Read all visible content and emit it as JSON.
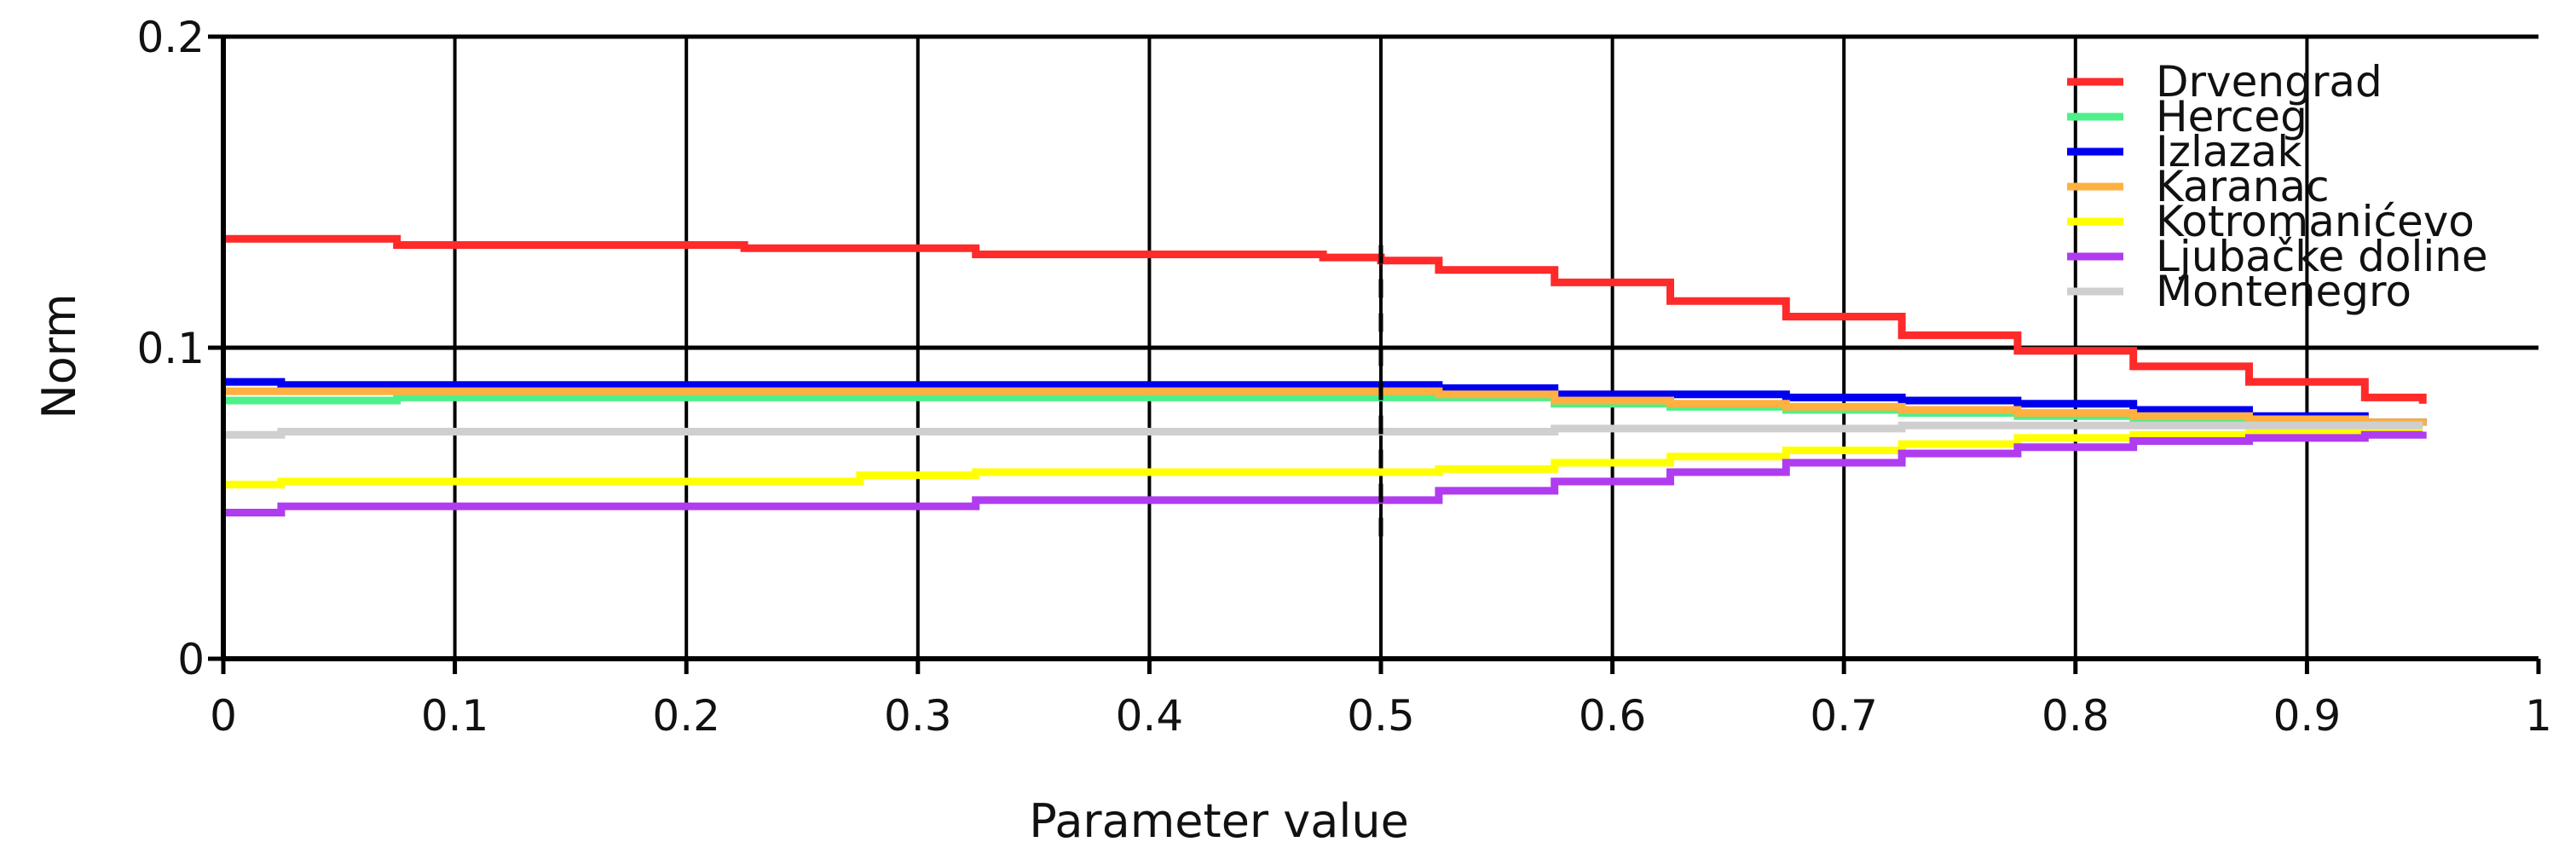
{
  "chart_data": {
    "type": "line",
    "xlabel": "Parameter value",
    "ylabel": "Norm",
    "xlim": [
      0,
      1
    ],
    "ylim": [
      0,
      0.2
    ],
    "x_ticks": [
      0,
      0.1,
      0.2,
      0.3,
      0.4,
      0.5,
      0.6,
      0.7,
      0.8,
      0.9,
      1
    ],
    "x_tick_labels": [
      "0",
      "0.1",
      "0.2",
      "0.3",
      "0.4",
      "0.5",
      "0.6",
      "0.7",
      "0.8",
      "0.9",
      "1"
    ],
    "y_ticks": [
      0,
      0.1,
      0.2
    ],
    "y_tick_labels": [
      "0",
      "0.1",
      "0.2"
    ],
    "grid": true,
    "legend_position": "top-right",
    "marker_line_x": 0.5,
    "series": [
      {
        "name": "Drvengrad",
        "color": "#ff2a2a",
        "x": [
          0,
          0.075,
          0.225,
          0.325,
          0.475,
          0.5,
          0.525,
          0.575,
          0.625,
          0.675,
          0.725,
          0.775,
          0.825,
          0.875,
          0.925,
          0.95
        ],
        "y": [
          0.135,
          0.133,
          0.132,
          0.13,
          0.129,
          0.128,
          0.125,
          0.121,
          0.115,
          0.11,
          0.104,
          0.099,
          0.094,
          0.089,
          0.084,
          0.082
        ]
      },
      {
        "name": "Herceg",
        "color": "#4ef08a",
        "x": [
          0,
          0.025,
          0.075,
          0.525,
          0.575,
          0.625,
          0.675,
          0.725,
          0.775,
          0.825,
          0.875,
          0.925,
          0.95
        ],
        "y": [
          0.083,
          0.083,
          0.084,
          0.084,
          0.082,
          0.081,
          0.08,
          0.079,
          0.078,
          0.077,
          0.077,
          0.076,
          0.075
        ]
      },
      {
        "name": "Izlazak",
        "color": "#0000ee",
        "x": [
          0,
          0.025,
          0.075,
          0.525,
          0.575,
          0.625,
          0.675,
          0.725,
          0.775,
          0.825,
          0.875,
          0.925,
          0.95
        ],
        "y": [
          0.089,
          0.088,
          0.088,
          0.087,
          0.085,
          0.085,
          0.084,
          0.083,
          0.082,
          0.08,
          0.078,
          0.076,
          0.075
        ]
      },
      {
        "name": "Karanac",
        "color": "#ffb040",
        "x": [
          0,
          0.075,
          0.275,
          0.525,
          0.575,
          0.625,
          0.675,
          0.725,
          0.775,
          0.825,
          0.875,
          0.925,
          0.95
        ],
        "y": [
          0.086,
          0.086,
          0.086,
          0.085,
          0.083,
          0.082,
          0.081,
          0.08,
          0.079,
          0.078,
          0.077,
          0.076,
          0.075
        ]
      },
      {
        "name": "Kotromanićevo",
        "color": "#ffff00",
        "x": [
          0,
          0.025,
          0.275,
          0.325,
          0.525,
          0.575,
          0.625,
          0.675,
          0.725,
          0.775,
          0.825,
          0.875,
          0.925,
          0.95
        ],
        "y": [
          0.056,
          0.057,
          0.059,
          0.06,
          0.061,
          0.063,
          0.065,
          0.067,
          0.069,
          0.071,
          0.072,
          0.073,
          0.074,
          0.074
        ]
      },
      {
        "name": "Ljubačke doline",
        "color": "#b03cf0",
        "x": [
          0,
          0.025,
          0.325,
          0.475,
          0.525,
          0.575,
          0.625,
          0.675,
          0.725,
          0.775,
          0.825,
          0.875,
          0.925,
          0.95
        ],
        "y": [
          0.047,
          0.049,
          0.051,
          0.051,
          0.054,
          0.057,
          0.06,
          0.063,
          0.066,
          0.068,
          0.07,
          0.071,
          0.072,
          0.073
        ]
      },
      {
        "name": "Montenegro",
        "color": "#cfcfcf",
        "x": [
          0,
          0.025,
          0.525,
          0.575,
          0.625,
          0.675,
          0.725,
          0.775,
          0.825,
          0.875,
          0.925,
          0.95
        ],
        "y": [
          0.072,
          0.073,
          0.073,
          0.074,
          0.074,
          0.074,
          0.075,
          0.075,
          0.075,
          0.075,
          0.075,
          0.075
        ]
      }
    ]
  }
}
